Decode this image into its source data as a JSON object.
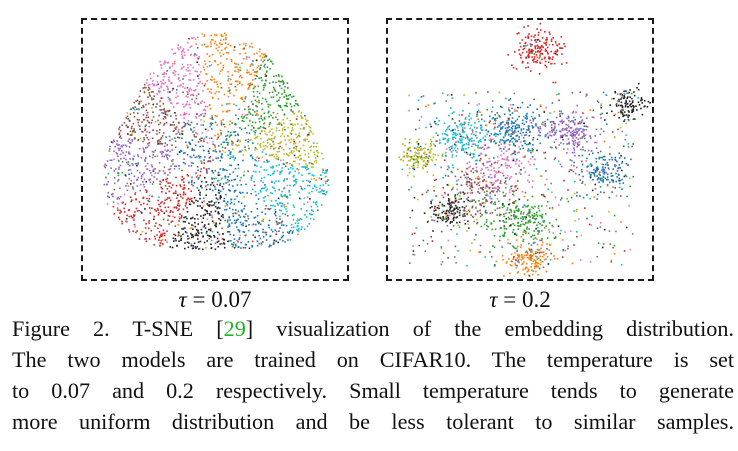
{
  "figure": {
    "panels": [
      {
        "id": "left",
        "label_symbol": "τ",
        "label_value": "= 0.07",
        "distribution": "uniform"
      },
      {
        "id": "right",
        "label_symbol": "τ",
        "label_value": "= 0.2",
        "distribution": "clustered"
      }
    ],
    "cluster_colors": [
      "#d62728",
      "#ff7f0e",
      "#2ca02c",
      "#1f77b4",
      "#9467bd",
      "#8c564b",
      "#e377c2",
      "#7f7f7f",
      "#bcbd22",
      "#17becf",
      "#222222"
    ]
  },
  "caption": {
    "line1_a": "Figure 2. T-SNE [",
    "line1_cite": "29",
    "line1_b": "] visualization of the embedding distribution.",
    "line2": "The two models are trained on CIFAR10. The temperature is set",
    "line3": "to 0.07 and 0.2 respectively. Small temperature tends to generate",
    "line4": "more uniform distribution and be less tolerant to similar samples."
  }
}
